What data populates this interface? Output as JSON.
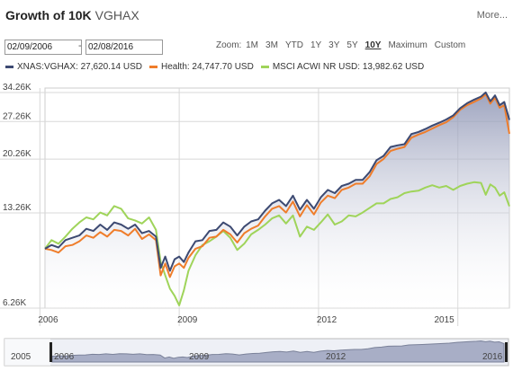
{
  "header": {
    "title_main": "Growth of 10K",
    "title_symbol": "VGHAX",
    "more_label": "More..."
  },
  "date_range": {
    "start": "02/09/2006",
    "end": "02/08/2016",
    "separator": "-"
  },
  "zoom": {
    "label": "Zoom:",
    "options": [
      "1M",
      "3M",
      "YTD",
      "1Y",
      "3Y",
      "5Y",
      "10Y",
      "Maximum",
      "Custom"
    ],
    "active": "10Y"
  },
  "legend": [
    {
      "label": "XNAS:VGHAX: 27,620.14 USD",
      "color": "#3d4a72"
    },
    {
      "label": "Health: 24,747.70 USD",
      "color": "#ef7d2b"
    },
    {
      "label": "MSCI ACWI NR USD: 13,982.62 USD",
      "color": "#9fd45a"
    }
  ],
  "chart_data": {
    "type": "line",
    "y_scale": "log",
    "ylim": [
      6260,
      35500
    ],
    "yticks": [
      6260,
      13260,
      20260,
      27260,
      34260
    ],
    "ytick_labels": [
      "6.26K",
      "13.26K",
      "20.26K",
      "27.26K",
      "34.26K"
    ],
    "xlim": [
      2006.11,
      2016.11
    ],
    "xticks": [
      2006,
      2009,
      2012,
      2015
    ],
    "xtick_labels": [
      "2006",
      "2009",
      "2012",
      "2015"
    ],
    "grid": true,
    "series": [
      {
        "name": "XNAS:VGHAX",
        "color": "#3d4a72",
        "filled": true,
        "x": [
          2006.11,
          2006.25,
          2006.4,
          2006.55,
          2006.7,
          2006.85,
          2007.0,
          2007.15,
          2007.3,
          2007.45,
          2007.6,
          2007.75,
          2007.9,
          2008.05,
          2008.2,
          2008.35,
          2008.5,
          2008.6,
          2008.7,
          2008.8,
          2008.9,
          2009.0,
          2009.1,
          2009.2,
          2009.35,
          2009.5,
          2009.65,
          2009.8,
          2009.95,
          2010.1,
          2010.25,
          2010.4,
          2010.55,
          2010.7,
          2010.85,
          2011.0,
          2011.15,
          2011.3,
          2011.45,
          2011.6,
          2011.75,
          2011.9,
          2012.05,
          2012.2,
          2012.35,
          2012.5,
          2012.65,
          2012.8,
          2012.95,
          2013.1,
          2013.25,
          2013.4,
          2013.55,
          2013.7,
          2013.85,
          2014.0,
          2014.15,
          2014.3,
          2014.45,
          2014.6,
          2014.75,
          2014.9,
          2015.05,
          2015.2,
          2015.35,
          2015.5,
          2015.6,
          2015.7,
          2015.8,
          2015.9,
          2016.0,
          2016.11
        ],
        "y": [
          10000,
          10300,
          10100,
          10700,
          10900,
          11100,
          11700,
          11500,
          12100,
          11600,
          12300,
          12100,
          11700,
          12100,
          11300,
          11500,
          11000,
          8600,
          9400,
          8400,
          9200,
          9400,
          9000,
          9700,
          10600,
          10700,
          11500,
          11600,
          12300,
          11900,
          11100,
          11900,
          12400,
          12600,
          13500,
          14300,
          14700,
          14000,
          15200,
          13600,
          14700,
          13700,
          15000,
          15900,
          15500,
          16400,
          16700,
          17200,
          17200,
          18300,
          20100,
          20800,
          22300,
          22600,
          22800,
          24700,
          25100,
          25700,
          26400,
          27000,
          27700,
          28600,
          30300,
          31500,
          32400,
          33200,
          34300,
          32000,
          33500,
          31000,
          31800,
          27600
        ]
      },
      {
        "name": "Health",
        "color": "#ef7d2b",
        "filled": false,
        "x": [
          2006.11,
          2006.25,
          2006.4,
          2006.55,
          2006.7,
          2006.85,
          2007.0,
          2007.15,
          2007.3,
          2007.45,
          2007.6,
          2007.75,
          2007.9,
          2008.05,
          2008.2,
          2008.35,
          2008.5,
          2008.6,
          2008.7,
          2008.8,
          2008.9,
          2009.0,
          2009.1,
          2009.2,
          2009.35,
          2009.5,
          2009.65,
          2009.8,
          2009.95,
          2010.1,
          2010.25,
          2010.4,
          2010.55,
          2010.7,
          2010.85,
          2011.0,
          2011.15,
          2011.3,
          2011.45,
          2011.6,
          2011.75,
          2011.9,
          2012.05,
          2012.2,
          2012.35,
          2012.5,
          2012.65,
          2012.8,
          2012.95,
          2013.1,
          2013.25,
          2013.4,
          2013.55,
          2013.7,
          2013.85,
          2014.0,
          2014.15,
          2014.3,
          2014.45,
          2014.6,
          2014.75,
          2014.9,
          2015.05,
          2015.2,
          2015.35,
          2015.5,
          2015.6,
          2015.7,
          2015.8,
          2015.9,
          2016.0,
          2016.11
        ],
        "y": [
          10000,
          9900,
          9700,
          10200,
          10300,
          10600,
          11100,
          10900,
          11400,
          11000,
          11600,
          11500,
          11100,
          11700,
          10800,
          11200,
          10700,
          8100,
          8900,
          8000,
          8700,
          8900,
          8600,
          9300,
          10000,
          10200,
          10900,
          11000,
          11600,
          11200,
          10500,
          11300,
          11700,
          12000,
          12900,
          13700,
          14000,
          13300,
          14500,
          12900,
          14100,
          13100,
          14400,
          15200,
          14900,
          15900,
          16200,
          16700,
          16700,
          17700,
          19500,
          20300,
          21600,
          22000,
          22300,
          24000,
          24600,
          25100,
          25800,
          26500,
          27100,
          28200,
          29900,
          31000,
          31800,
          32700,
          33800,
          31400,
          32900,
          30400,
          31000,
          24750
        ]
      },
      {
        "name": "MSCI ACWI NR USD",
        "color": "#9fd45a",
        "filled": false,
        "x": [
          2006.11,
          2006.25,
          2006.4,
          2006.55,
          2006.7,
          2006.85,
          2007.0,
          2007.15,
          2007.3,
          2007.45,
          2007.6,
          2007.75,
          2007.9,
          2008.05,
          2008.2,
          2008.35,
          2008.5,
          2008.6,
          2008.7,
          2008.8,
          2008.9,
          2009.0,
          2009.1,
          2009.2,
          2009.35,
          2009.5,
          2009.65,
          2009.8,
          2009.95,
          2010.1,
          2010.25,
          2010.4,
          2010.55,
          2010.7,
          2010.85,
          2011.0,
          2011.15,
          2011.3,
          2011.45,
          2011.6,
          2011.75,
          2011.9,
          2012.05,
          2012.2,
          2012.35,
          2012.5,
          2012.65,
          2012.8,
          2012.95,
          2013.1,
          2013.25,
          2013.4,
          2013.55,
          2013.7,
          2013.85,
          2014.0,
          2014.15,
          2014.3,
          2014.45,
          2014.6,
          2014.75,
          2014.9,
          2015.05,
          2015.2,
          2015.35,
          2015.5,
          2015.6,
          2015.7,
          2015.8,
          2015.9,
          2016.0,
          2016.11
        ],
        "y": [
          10000,
          10700,
          10400,
          11000,
          11700,
          12300,
          12800,
          12600,
          13300,
          13000,
          14000,
          13700,
          12700,
          12500,
          12200,
          12800,
          11600,
          9000,
          8100,
          7300,
          6900,
          6400,
          7200,
          8400,
          9500,
          10300,
          10600,
          11000,
          11500,
          10900,
          9900,
          10400,
          11200,
          11600,
          12100,
          12700,
          13000,
          12200,
          13000,
          11000,
          11900,
          11600,
          12300,
          13100,
          12100,
          12400,
          13000,
          12900,
          13300,
          13800,
          14300,
          14300,
          14800,
          15000,
          15500,
          15700,
          15800,
          16200,
          16500,
          16200,
          16400,
          15900,
          16400,
          16700,
          16900,
          16800,
          15300,
          16600,
          16200,
          15200,
          15600,
          13980
        ]
      }
    ]
  },
  "navigator": {
    "labels": [
      "2005",
      "2006",
      "2009",
      "2012",
      "2016"
    ]
  }
}
